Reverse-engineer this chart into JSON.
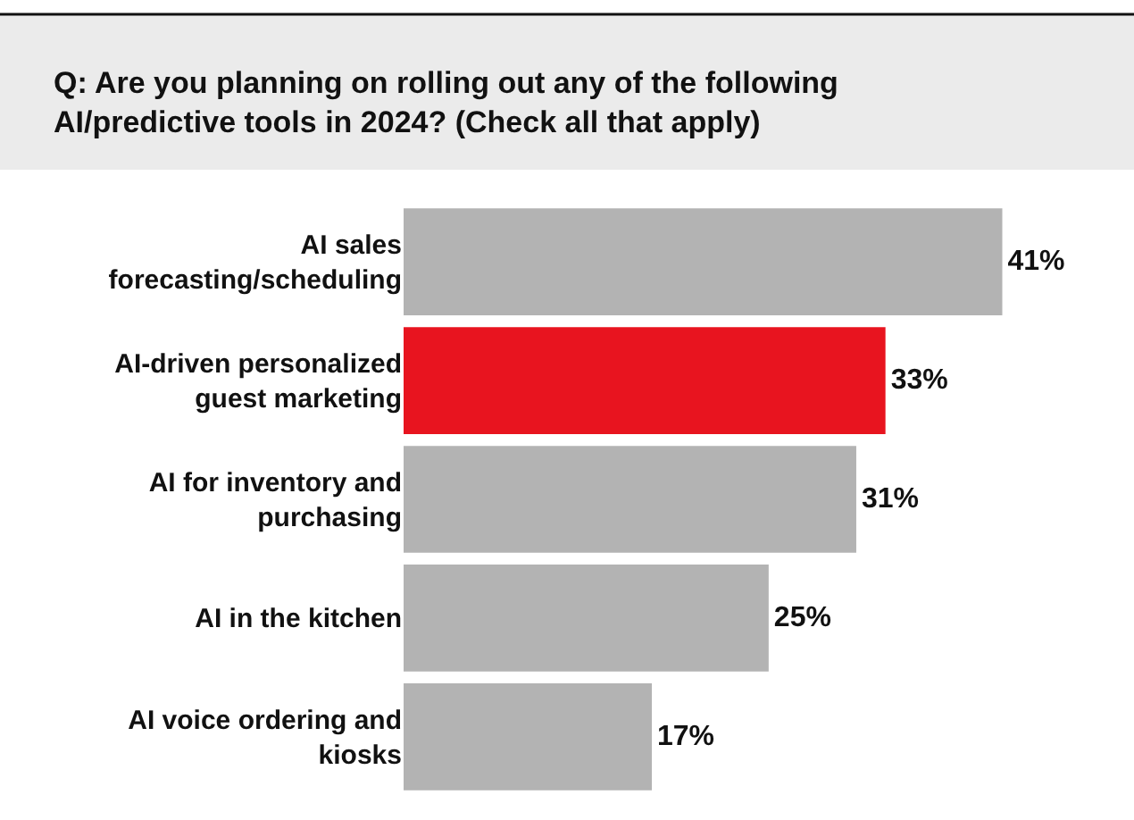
{
  "chart_data": {
    "type": "bar",
    "orientation": "horizontal",
    "title": "Q: Are you planning on rolling out any of the following AI/predictive tools in 2024? (Check all that apply)",
    "categories": [
      "AI sales forecasting/scheduling",
      "AI-driven personalized guest marketing",
      "AI for inventory and purchasing",
      "AI in the kitchen",
      "AI voice ordering and kiosks"
    ],
    "values": [
      41,
      33,
      31,
      25,
      17
    ],
    "colors": [
      "#b3b3b3",
      "#e8141f",
      "#b3b3b3",
      "#b3b3b3",
      "#b3b3b3"
    ],
    "value_labels": [
      "41%",
      "33%",
      "31%",
      "25%",
      "17%"
    ],
    "tick_labels": "y",
    "legend": false
  }
}
